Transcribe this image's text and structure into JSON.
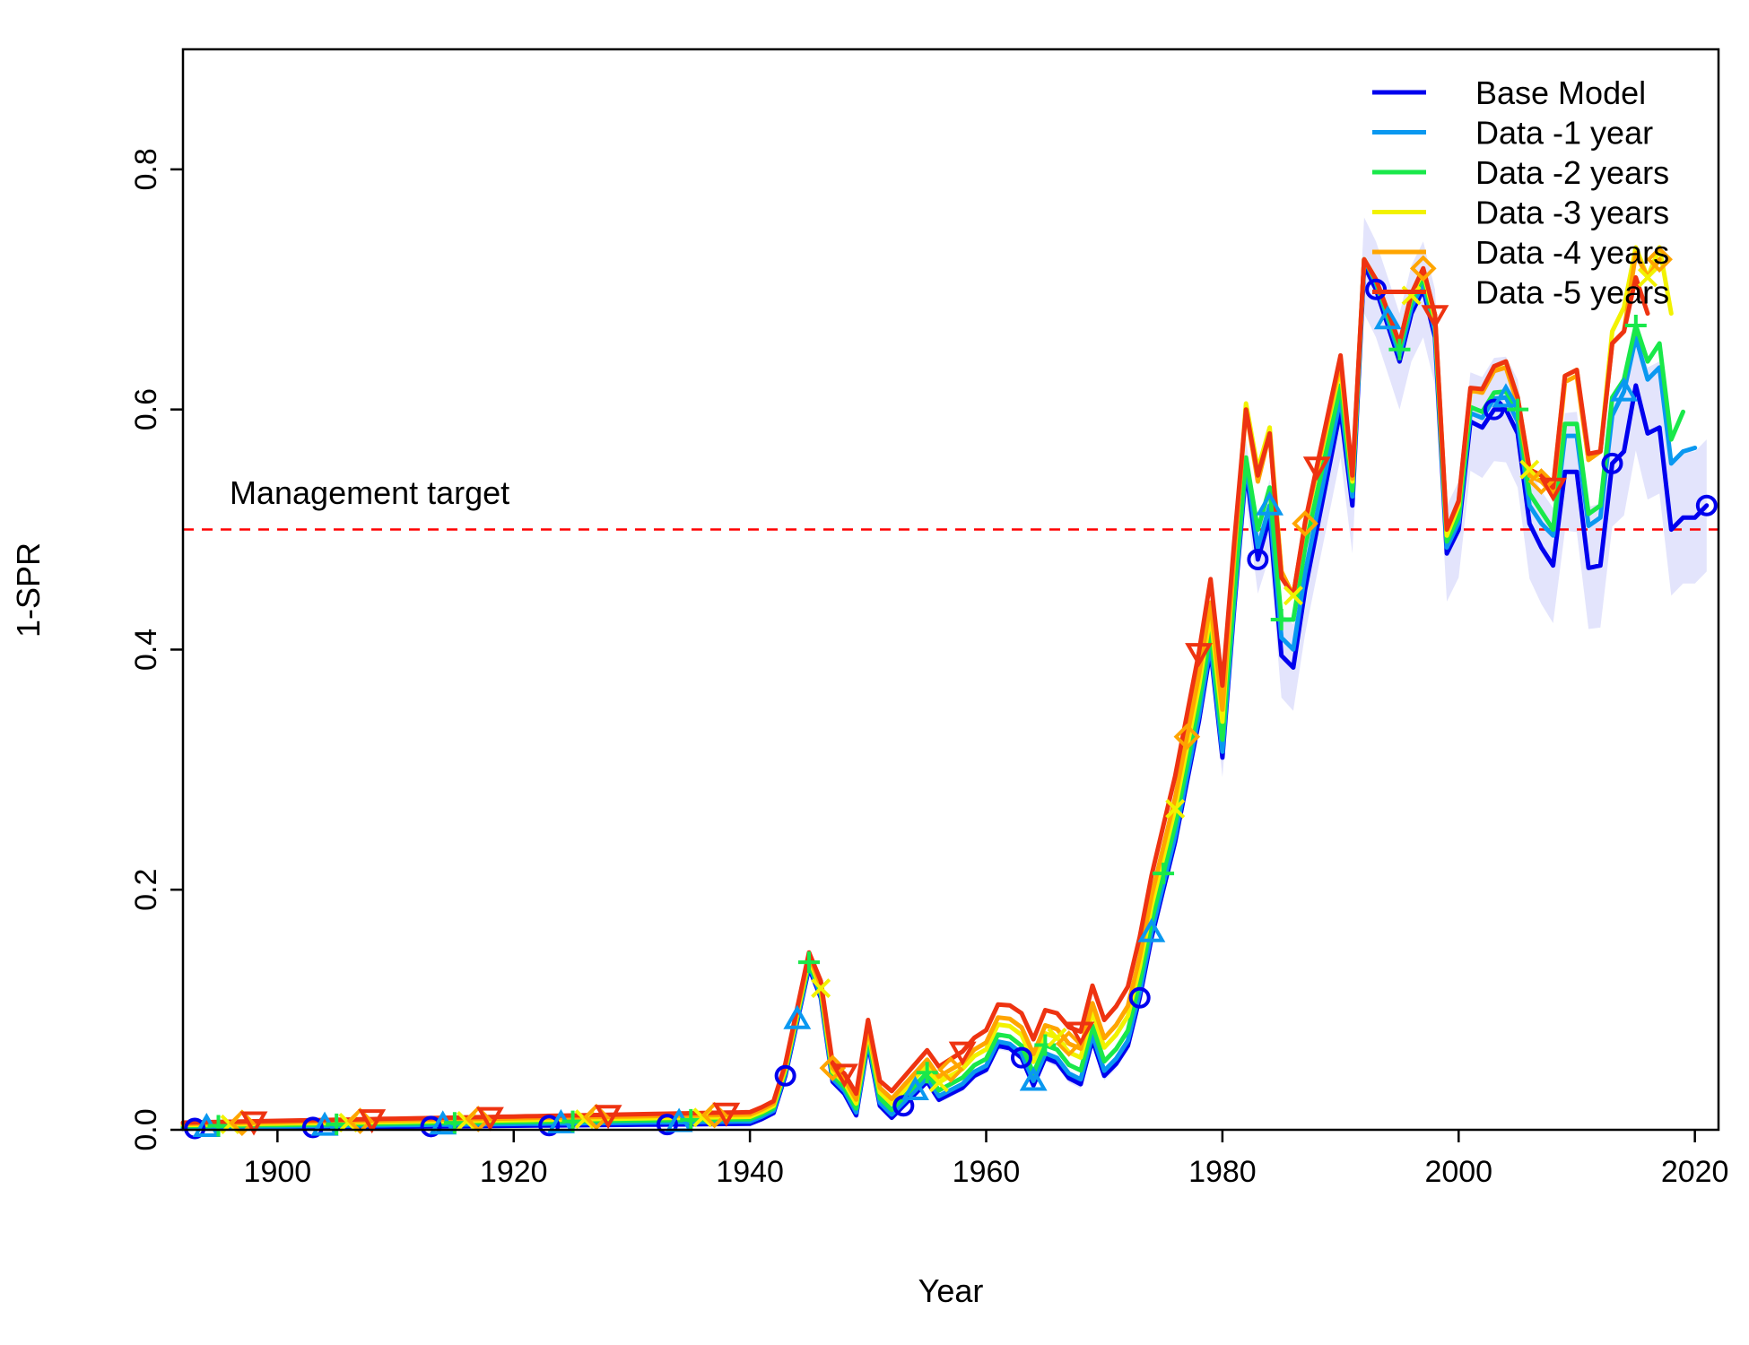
{
  "chart_data": {
    "type": "line",
    "title": "",
    "xlabel": "Year",
    "ylabel": "1-SPR",
    "xlim": [
      1892,
      2022
    ],
    "ylim": [
      0,
      0.9
    ],
    "x_ticks": [
      1900,
      1920,
      1940,
      1960,
      1980,
      2000,
      2020
    ],
    "y_ticks": [
      0.0,
      0.2,
      0.4,
      0.6,
      0.8
    ],
    "y_tick_labels": [
      "0.0",
      "0.2",
      "0.4",
      "0.6",
      "0.8"
    ],
    "legend_position": "top-right",
    "reference_line": {
      "value": 0.5,
      "label": "Management target",
      "color": "#ff0000"
    },
    "uncertainty_band": {
      "series": "Base Model",
      "color": "#e3e4fc"
    },
    "series": [
      {
        "name": "Base Model",
        "color": "#0000ee",
        "marker": "circle",
        "end_year": 2021
      },
      {
        "name": "Data -1 year",
        "color": "#0a98f0",
        "marker": "triangle-up",
        "end_year": 2020
      },
      {
        "name": "Data -2 years",
        "color": "#19e84a",
        "marker": "plus",
        "end_year": 2019
      },
      {
        "name": "Data -3 years",
        "color": "#f2f200",
        "marker": "cross",
        "end_year": 2018
      },
      {
        "name": "Data -4 years",
        "color": "#ffa500",
        "marker": "diamond",
        "end_year": 2017
      },
      {
        "name": "Data -5 years",
        "color": "#ee3311",
        "marker": "triangle-down",
        "end_year": 2016
      }
    ],
    "base_values": {
      "1892": 0.001,
      "1940": 0.005,
      "1941": 0.009,
      "1942": 0.014,
      "1943": 0.045,
      "1944": 0.09,
      "1945": 0.135,
      "1946": 0.11,
      "1947": 0.04,
      "1948": 0.03,
      "1949": 0.012,
      "1950": 0.072,
      "1951": 0.02,
      "1952": 0.01,
      "1953": 0.02,
      "1954": 0.03,
      "1955": 0.04,
      "1956": 0.025,
      "1957": 0.03,
      "1958": 0.035,
      "1959": 0.045,
      "1960": 0.05,
      "1961": 0.07,
      "1962": 0.068,
      "1963": 0.06,
      "1964": 0.037,
      "1965": 0.06,
      "1966": 0.056,
      "1967": 0.043,
      "1968": 0.038,
      "1969": 0.075,
      "1970": 0.045,
      "1971": 0.055,
      "1972": 0.07,
      "1973": 0.11,
      "1974": 0.16,
      "1975": 0.2,
      "1976": 0.24,
      "1977": 0.29,
      "1978": 0.34,
      "1979": 0.4,
      "1980": 0.31,
      "1981": 0.435,
      "1982": 0.55,
      "1983": 0.475,
      "1984": 0.51,
      "1985": 0.395,
      "1986": 0.385,
      "1987": 0.45,
      "1988": 0.5,
      "1989": 0.55,
      "1990": 0.6,
      "1991": 0.52,
      "1992": 0.72,
      "1993": 0.7,
      "1994": 0.67,
      "1995": 0.64,
      "1996": 0.68,
      "1997": 0.7,
      "1998": 0.66,
      "1999": 0.48,
      "2000": 0.5,
      "2001": 0.59,
      "2002": 0.585,
      "2003": 0.6,
      "2004": 0.6,
      "2005": 0.58,
      "2006": 0.505,
      "2007": 0.485,
      "2008": 0.47,
      "2009": 0.548,
      "2010": 0.548,
      "2011": 0.468,
      "2012": 0.47,
      "2013": 0.555,
      "2014": 0.565,
      "2015": 0.62,
      "2016": 0.58,
      "2017": 0.585,
      "2018": 0.5,
      "2019": 0.51,
      "2020": 0.51,
      "2021": 0.52
    },
    "series_offsets": {
      "Data -1 year": {
        "1892": 0.001,
        "1943": 0.002,
        "1980": 0.005,
        "1982": 0.005,
        "1983": 0.01,
        "1984": 0.01,
        "1985": 0.015,
        "1986": 0.015,
        "1990": 0.01,
        "1992": 0.005,
        "1995": 0.005,
        "1999": 0.005,
        "2004": 0.01,
        "2005": 0.01,
        "2006": 0.015,
        "2007": 0.02,
        "2008": 0.025,
        "2009": 0.03,
        "2010": 0.03,
        "2011": 0.035,
        "2012": 0.04,
        "2013": 0.04,
        "2014": 0.05,
        "2015": 0.04,
        "2016": 0.045,
        "2017": 0.05,
        "2018": 0.055,
        "2019": 0.055,
        "2020": 0.058
      },
      "Data -2 years": {
        "1892": 0.002,
        "1943": 0.004,
        "1980": 0.015,
        "1982": 0.01,
        "1983": 0.025,
        "1984": 0.025,
        "1985": 0.03,
        "1986": 0.04,
        "1990": 0.02,
        "1992": 0.005,
        "1995": 0.01,
        "1999": 0.01,
        "2004": 0.015,
        "2005": 0.02,
        "2006": 0.025,
        "2007": 0.03,
        "2008": 0.03,
        "2009": 0.04,
        "2010": 0.04,
        "2011": 0.045,
        "2012": 0.05,
        "2013": 0.055,
        "2014": 0.06,
        "2015": 0.05,
        "2016": 0.06,
        "2017": 0.07,
        "2018": 0.075,
        "2019": 0.088
      },
      "Data -3 years": {
        "1892": 0.003,
        "1943": 0.006,
        "1980": 0.03,
        "1982": 0.055,
        "1983": 0.075,
        "1984": 0.075,
        "1985": 0.07,
        "1986": 0.06,
        "1990": 0.035,
        "1992": 0.005,
        "1995": 0.015,
        "1999": 0.015,
        "2004": 0.04,
        "2005": 0.03,
        "2006": 0.045,
        "2007": 0.06,
        "2008": 0.065,
        "2009": 0.08,
        "2010": 0.085,
        "2011": 0.09,
        "2012": 0.095,
        "2013": 0.11,
        "2014": 0.12,
        "2015": 0.115,
        "2016": 0.13,
        "2017": 0.15,
        "2018": 0.18
      },
      "Data -4 years": {
        "1892": 0.004,
        "1943": 0.008,
        "1980": 0.04,
        "1982": 0.05,
        "1983": 0.065,
        "1984": 0.07,
        "1985": 0.07,
        "1986": 0.06,
        "1990": 0.04,
        "1992": 0.005,
        "1995": 0.015,
        "1999": 0.02,
        "2004": 0.035,
        "2005": 0.025,
        "2006": 0.04,
        "2007": 0.055,
        "2008": 0.06,
        "2009": 0.075,
        "2010": 0.08,
        "2011": 0.09,
        "2012": 0.095,
        "2013": 0.1,
        "2014": 0.1,
        "2015": 0.11,
        "2016": 0.13,
        "2017": 0.14
      },
      "Data -5 years": {
        "1892": 0.005,
        "1943": 0.01,
        "1980": 0.06,
        "1982": 0.05,
        "1983": 0.07,
        "1984": 0.07,
        "1985": 0.065,
        "1986": 0.06,
        "1990": 0.045,
        "1992": 0.005,
        "1995": 0.015,
        "1999": 0.02,
        "2004": 0.04,
        "2005": 0.03,
        "2006": 0.045,
        "2007": 0.06,
        "2008": 0.065,
        "2009": 0.08,
        "2010": 0.085,
        "2011": 0.095,
        "2012": 0.095,
        "2013": 0.1,
        "2014": 0.1,
        "2015": 0.09,
        "2016": 0.1
      }
    },
    "uncertainty_halfwidth": {
      "1892": 0.0,
      "1940": 0.001,
      "1972": 0.004,
      "1979": 0.012,
      "1982": 0.025,
      "1985": 0.035,
      "1990": 0.04,
      "1995": 0.04,
      "2000": 0.04,
      "2005": 0.045,
      "2010": 0.05,
      "2016": 0.055,
      "2021": 0.055
    }
  }
}
